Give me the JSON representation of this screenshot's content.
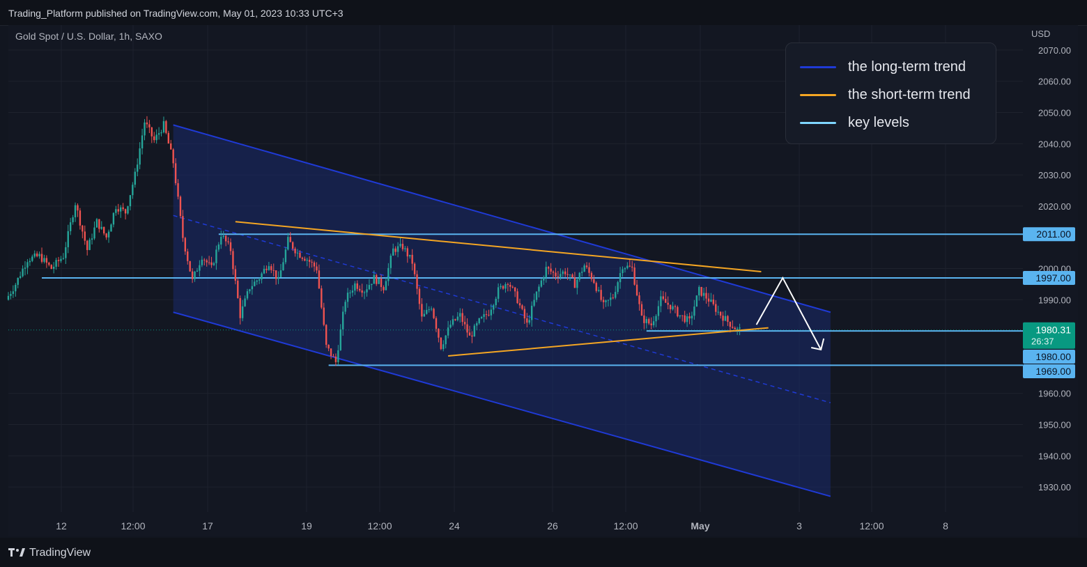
{
  "header": {
    "published_text": "Trading_Platform published on TradingView.com, May 01, 2023 10:33 UTC+3"
  },
  "symbol": {
    "title": "Gold Spot / U.S. Dollar, 1h, SAXO",
    "currency": "USD"
  },
  "legend": [
    {
      "label": "the long-term trend",
      "color": "#1f3ad6"
    },
    {
      "label": "the short-term trend",
      "color": "#f5a623"
    },
    {
      "label": "key levels",
      "color": "#7fd6ff"
    }
  ],
  "footer": {
    "brand": "TradingView"
  },
  "colors": {
    "background": "#131722",
    "up_candle": "#26a69a",
    "down_candle": "#ef5350",
    "channel_fill": "#1a2a6c",
    "channel_line": "#1f3ad6",
    "key_level": "#5ab4f0",
    "short_trend": "#f5a623",
    "price_label_current": "#089981",
    "price_label_level": "#5ab4f0",
    "arrow": "#ffffff"
  },
  "chart_data": {
    "type": "candlestick",
    "title": "Gold Spot / U.S. Dollar, 1h, SAXO",
    "x_tick_labels": [
      "12",
      "12:00",
      "17",
      "19",
      "12:00",
      "24",
      "26",
      "12:00",
      "May",
      "3",
      "12:00",
      "8"
    ],
    "y_ticks": [
      2070,
      2060,
      2050,
      2040,
      2030,
      2020,
      2000,
      1990,
      1960,
      1950,
      1940,
      1930
    ],
    "y_tick_labels": [
      "2070.00",
      "2060.00",
      "2050.00",
      "2040.00",
      "2030.00",
      "2020.00",
      "2000.00",
      "1990.00",
      "1960.00",
      "1950.00",
      "1940.00",
      "1930.00"
    ],
    "ylim": [
      1922,
      2078
    ],
    "ylabel": "USD",
    "grid": true,
    "legend_position": "top-right",
    "price_path": [
      {
        "x": 0,
        "y": 1990
      },
      {
        "x": 4,
        "y": 1995
      },
      {
        "x": 9,
        "y": 2003
      },
      {
        "x": 14,
        "y": 2004
      },
      {
        "x": 19,
        "y": 2000
      },
      {
        "x": 24,
        "y": 2004
      },
      {
        "x": 29,
        "y": 2021
      },
      {
        "x": 34,
        "y": 2006
      },
      {
        "x": 38,
        "y": 2015
      },
      {
        "x": 42,
        "y": 2010
      },
      {
        "x": 46,
        "y": 2020
      },
      {
        "x": 50,
        "y": 2018
      },
      {
        "x": 54,
        "y": 2030
      },
      {
        "x": 58,
        "y": 2047
      },
      {
        "x": 62,
        "y": 2041
      },
      {
        "x": 66,
        "y": 2046
      },
      {
        "x": 70,
        "y": 2034
      },
      {
        "x": 74,
        "y": 2010
      },
      {
        "x": 78,
        "y": 1996
      },
      {
        "x": 82,
        "y": 2004
      },
      {
        "x": 86,
        "y": 2000
      },
      {
        "x": 90,
        "y": 2011
      },
      {
        "x": 94,
        "y": 2006
      },
      {
        "x": 98,
        "y": 1985
      },
      {
        "x": 102,
        "y": 1994
      },
      {
        "x": 106,
        "y": 1997
      },
      {
        "x": 110,
        "y": 2002
      },
      {
        "x": 114,
        "y": 1996
      },
      {
        "x": 118,
        "y": 2009
      },
      {
        "x": 122,
        "y": 2005
      },
      {
        "x": 126,
        "y": 2003
      },
      {
        "x": 130,
        "y": 2000
      },
      {
        "x": 134,
        "y": 1975
      },
      {
        "x": 138,
        "y": 1970
      },
      {
        "x": 142,
        "y": 1990
      },
      {
        "x": 146,
        "y": 1995
      },
      {
        "x": 150,
        "y": 1993
      },
      {
        "x": 154,
        "y": 1997
      },
      {
        "x": 158,
        "y": 1994
      },
      {
        "x": 162,
        "y": 2006
      },
      {
        "x": 166,
        "y": 2007
      },
      {
        "x": 170,
        "y": 2002
      },
      {
        "x": 174,
        "y": 1984
      },
      {
        "x": 178,
        "y": 1988
      },
      {
        "x": 182,
        "y": 1975
      },
      {
        "x": 186,
        "y": 1982
      },
      {
        "x": 190,
        "y": 1985
      },
      {
        "x": 194,
        "y": 1978
      },
      {
        "x": 198,
        "y": 1983
      },
      {
        "x": 202,
        "y": 1986
      },
      {
        "x": 206,
        "y": 1993
      },
      {
        "x": 210,
        "y": 1996
      },
      {
        "x": 214,
        "y": 1990
      },
      {
        "x": 218,
        "y": 1982
      },
      {
        "x": 222,
        "y": 1992
      },
      {
        "x": 226,
        "y": 2000
      },
      {
        "x": 230,
        "y": 1998
      },
      {
        "x": 234,
        "y": 1999
      },
      {
        "x": 238,
        "y": 1995
      },
      {
        "x": 242,
        "y": 2001
      },
      {
        "x": 246,
        "y": 1996
      },
      {
        "x": 250,
        "y": 1988
      },
      {
        "x": 254,
        "y": 1991
      },
      {
        "x": 258,
        "y": 2001
      },
      {
        "x": 262,
        "y": 2000
      },
      {
        "x": 266,
        "y": 1984
      },
      {
        "x": 270,
        "y": 1982
      },
      {
        "x": 274,
        "y": 1990
      },
      {
        "x": 278,
        "y": 1988
      },
      {
        "x": 282,
        "y": 1985
      },
      {
        "x": 286,
        "y": 1983
      },
      {
        "x": 290,
        "y": 1993
      },
      {
        "x": 294,
        "y": 1990
      },
      {
        "x": 298,
        "y": 1986
      },
      {
        "x": 302,
        "y": 1983
      },
      {
        "x": 306,
        "y": 1980.31
      }
    ],
    "current_price": {
      "label": "1980.31",
      "value": 1980.31,
      "countdown": "26:37"
    },
    "key_levels": [
      {
        "label": "2011.00",
        "value": 2011.0
      },
      {
        "label": "1997.00",
        "value": 1997.0
      },
      {
        "label": "1980.00",
        "value": 1980.0
      },
      {
        "label": "1969.00",
        "value": 1969.0
      }
    ],
    "long_term_channel": {
      "upper": [
        {
          "x": 69,
          "y": 2046
        },
        {
          "x": 344,
          "y": 1986
        }
      ],
      "mid": [
        {
          "x": 69,
          "y": 2017
        },
        {
          "x": 344,
          "y": 1957
        }
      ],
      "lower": [
        {
          "x": 69,
          "y": 1986
        },
        {
          "x": 344,
          "y": 1927
        }
      ]
    },
    "short_term_trend": {
      "upper": [
        {
          "x": 95,
          "y": 2015
        },
        {
          "x": 315,
          "y": 1999
        }
      ],
      "lower": [
        {
          "x": 184,
          "y": 1972
        },
        {
          "x": 318,
          "y": 1981
        }
      ]
    },
    "projection_arrow": [
      {
        "x": 313,
        "y": 1982
      },
      {
        "x": 324,
        "y": 1997
      },
      {
        "x": 340,
        "y": 1974
      }
    ]
  }
}
